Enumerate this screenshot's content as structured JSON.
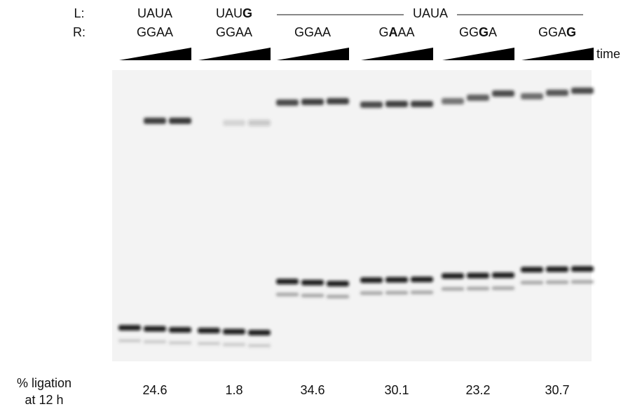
{
  "strand_labels": {
    "left": "L:",
    "right": "R:"
  },
  "time_label": "time",
  "shared_left": "UAUA",
  "lanes": [
    {
      "left": [
        {
          "text": "UAUA",
          "bold": false
        }
      ],
      "right": [
        {
          "text": "GGAA",
          "bold": false
        }
      ],
      "ligation": "24.6"
    },
    {
      "left": [
        {
          "text": "UAU",
          "bold": false
        },
        {
          "text": "G",
          "bold": true
        }
      ],
      "right": [
        {
          "text": "GGAA",
          "bold": false
        }
      ],
      "ligation": "1.8"
    },
    {
      "right": [
        {
          "text": "GGAA",
          "bold": false
        }
      ],
      "ligation": "34.6"
    },
    {
      "right": [
        {
          "text": "G",
          "bold": false
        },
        {
          "text": "A",
          "bold": true
        },
        {
          "text": "AA",
          "bold": false
        }
      ],
      "ligation": "30.1"
    },
    {
      "right": [
        {
          "text": "GG",
          "bold": false
        },
        {
          "text": "G",
          "bold": true
        },
        {
          "text": "A",
          "bold": false
        }
      ],
      "ligation": "23.2"
    },
    {
      "right": [
        {
          "text": "GGA",
          "bold": false
        },
        {
          "text": "G",
          "bold": true
        }
      ],
      "ligation": "30.7"
    }
  ],
  "ligation_label": [
    "% ligation",
    "at 12 h"
  ]
}
